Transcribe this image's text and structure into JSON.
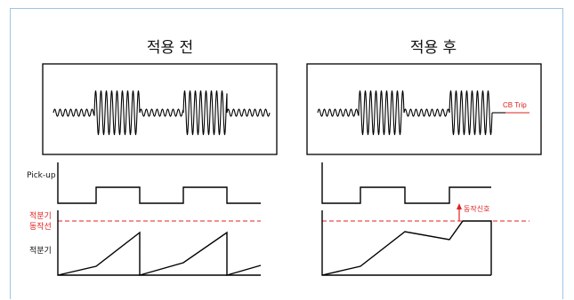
{
  "panels": {
    "before": {
      "title": "적용 전"
    },
    "after": {
      "title": "적용 후",
      "trip_label": "CB Trip",
      "signal_label": "동작신호"
    }
  },
  "labels": {
    "pickup": "Pick-up",
    "threshold_line1": "적분기",
    "threshold_line2": "동작선",
    "integrator": "적분기"
  },
  "colors": {
    "trace": "#000000",
    "threshold": "#e0201f",
    "frame": "#9cc6e6"
  }
}
